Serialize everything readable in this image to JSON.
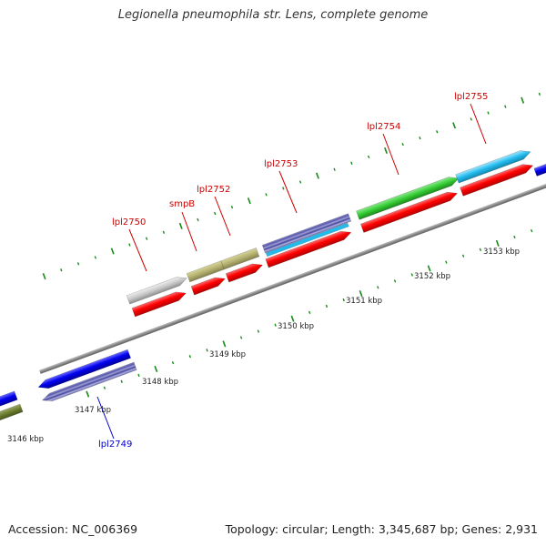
{
  "title": "Legionella pneumophila str. Lens, complete genome",
  "footer": {
    "accession": "Accession: NC_006369",
    "summary": "Topology: circular; Length: 3,345,687 bp; Genes: 2,931"
  },
  "colors": {
    "cds_red": "#ff0000",
    "backbone": "#808080",
    "tick_green": "#1a8a1a",
    "label_red": "#cc0000",
    "label_blue": "#0000cc"
  },
  "scale": {
    "labels": [
      "3146 kbp",
      "3147 kbp",
      "3148 kbp",
      "3149 kbp",
      "3150 kbp",
      "3151 kbp",
      "3152 kbp",
      "3153 kbp"
    ]
  },
  "gene_labels": [
    {
      "text": "lpl2750",
      "color": "#cc0000"
    },
    {
      "text": "smpB",
      "color": "#cc0000"
    },
    {
      "text": "lpl2752",
      "color": "#cc0000"
    },
    {
      "text": "lpl2753",
      "color": "#cc0000"
    },
    {
      "text": "lpl2754",
      "color": "#cc0000"
    },
    {
      "text": "lpl2755",
      "color": "#cc0000"
    },
    {
      "text": "lpl2749",
      "color": "#0000cc"
    }
  ]
}
